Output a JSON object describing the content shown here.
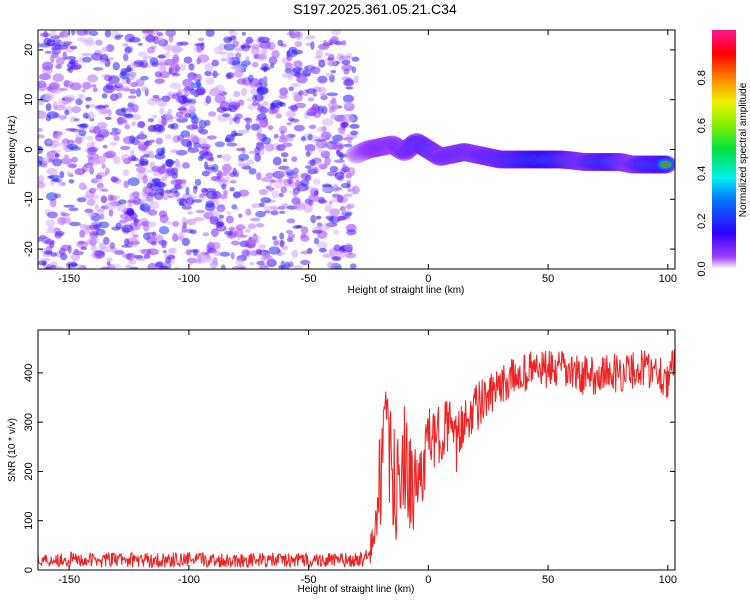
{
  "chart_data": [
    {
      "type": "heatmap",
      "title": "S197.2025.361.05.21.C34",
      "xlabel": "Height of straight line (km)",
      "ylabel": "Frequency (Hz)",
      "xlim": [
        -163,
        103
      ],
      "ylim": [
        -24,
        24
      ],
      "xticks": [
        -150,
        -100,
        -50,
        0,
        50,
        100
      ],
      "yticks": [
        -20,
        -10,
        0,
        10,
        20
      ],
      "colorbar": {
        "label": "Normalized spectral amplitude",
        "ticks": [
          "0.0",
          "0.2",
          "0.4",
          "0.6",
          "0.8"
        ],
        "range": [
          0,
          1
        ]
      },
      "noise_region_km": [
        -163,
        -30
      ],
      "ridge": {
        "km": [
          -30,
          -25,
          -20,
          -15,
          -10,
          -5,
          0,
          5,
          10,
          15,
          20,
          25,
          30,
          35,
          40,
          45,
          50,
          55,
          60,
          65,
          70,
          75,
          80,
          85,
          90,
          95,
          100
        ],
        "freq_hz": [
          -1,
          0,
          0.5,
          1,
          -0.5,
          1.5,
          0,
          -1.5,
          -1,
          -0.5,
          -1,
          -1.5,
          -2,
          -2,
          -2,
          -2,
          -2,
          -2,
          -2.2,
          -2.5,
          -2.5,
          -2.5,
          -2.5,
          -3,
          -3,
          -3,
          -3
        ],
        "amplitude": [
          0.15,
          0.3,
          0.4,
          0.35,
          0.4,
          0.55,
          0.6,
          0.45,
          0.5,
          0.5,
          0.45,
          0.55,
          0.6,
          0.7,
          0.8,
          0.9,
          0.9,
          0.8,
          0.6,
          0.5,
          0.7,
          0.8,
          0.6,
          0.4,
          0.7,
          0.8,
          0.85
        ]
      }
    },
    {
      "type": "line",
      "xlabel": "Height of straight line (km)",
      "ylabel": "SNR (10 * v/v)",
      "xlim": [
        -163,
        103
      ],
      "ylim": [
        0,
        487
      ],
      "xticks": [
        -150,
        -100,
        -50,
        0,
        50,
        100
      ],
      "yticks": [
        0,
        100,
        200,
        300,
        400
      ],
      "color": "#ee2222",
      "x": [
        -163,
        -150,
        -140,
        -130,
        -120,
        -110,
        -100,
        -90,
        -80,
        -70,
        -60,
        -50,
        -40,
        -30,
        -25,
        -22,
        -20,
        -18,
        -15,
        -12,
        -10,
        -7,
        -5,
        -2,
        0,
        3,
        5,
        8,
        10,
        12,
        15,
        20,
        25,
        30,
        35,
        40,
        45,
        50,
        55,
        60,
        65,
        70,
        75,
        80,
        85,
        90,
        95,
        100,
        103
      ],
      "y": [
        20,
        22,
        20,
        21,
        20,
        20,
        21,
        20,
        20,
        20,
        20,
        20,
        20,
        20,
        25,
        80,
        200,
        280,
        190,
        150,
        240,
        150,
        170,
        210,
        270,
        260,
        280,
        300,
        270,
        250,
        310,
        330,
        350,
        370,
        390,
        400,
        410,
        405,
        405,
        400,
        395,
        395,
        400,
        400,
        405,
        410,
        405,
        390,
        410
      ],
      "noise": [
        15,
        15,
        15,
        15,
        15,
        15,
        15,
        15,
        15,
        15,
        15,
        15,
        15,
        15,
        20,
        60,
        120,
        110,
        110,
        110,
        110,
        100,
        90,
        70,
        60,
        60,
        60,
        60,
        60,
        60,
        55,
        50,
        45,
        40,
        40,
        40,
        40,
        40,
        40,
        40,
        40,
        40,
        40,
        40,
        40,
        40,
        40,
        45,
        45
      ]
    }
  ]
}
